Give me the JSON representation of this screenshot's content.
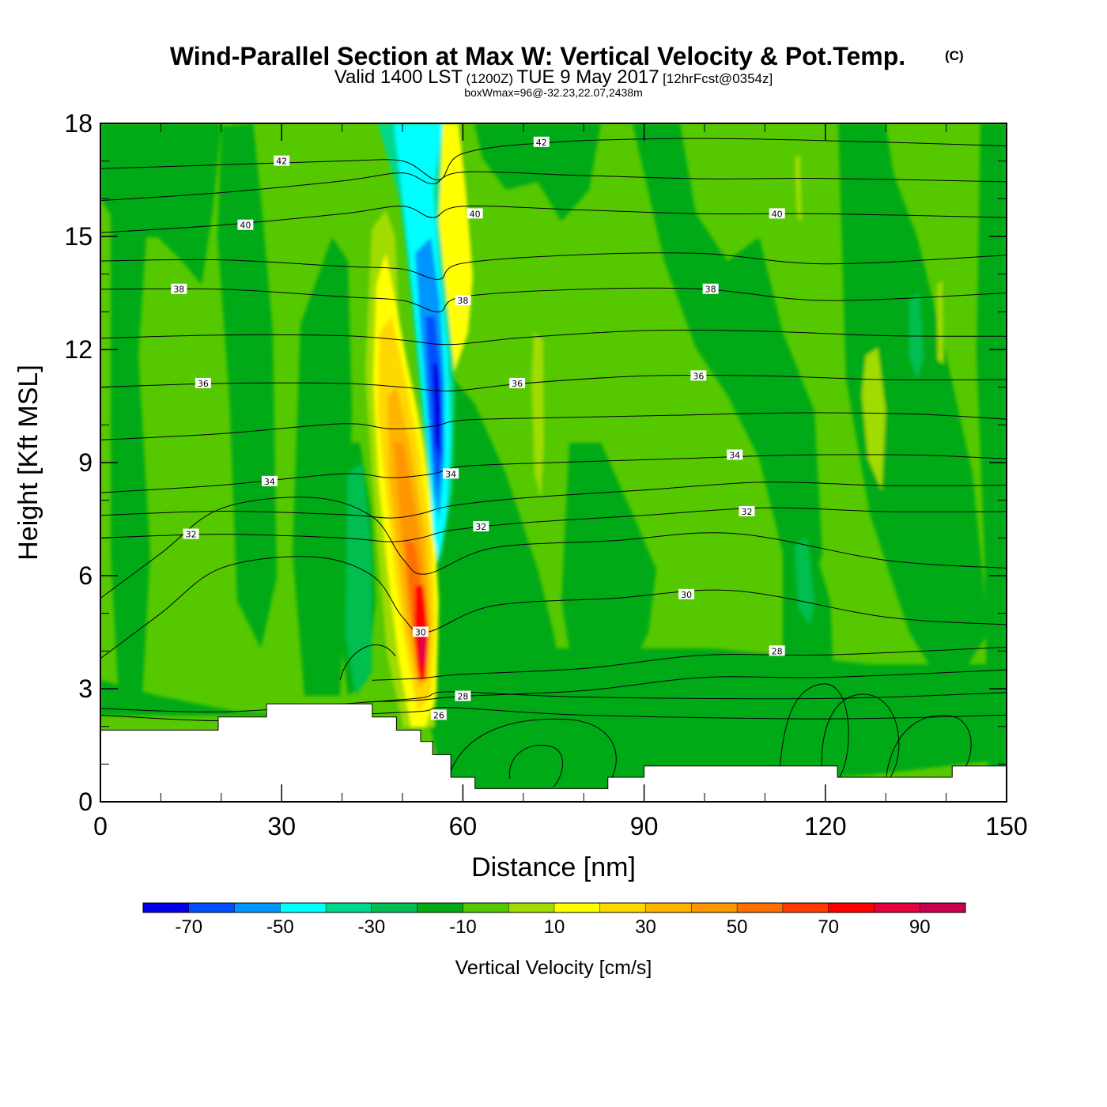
{
  "title": {
    "main": "Wind-Parallel Section at Max W: Vertical Velocity & Pot.Temp.",
    "copyright": "(C)",
    "valid_prefix": "Valid 1400 LST",
    "valid_zulu": "(1200Z)",
    "valid_date": "TUE 9 May 2017",
    "forecast": "[12hrFcst@0354z]",
    "box_info": "boxWmax=96@-32.23,22.07,2438m"
  },
  "chart_data": {
    "type": "contour-cross-section",
    "xlabel": "Distance [nm]",
    "ylabel": "Height [Kft MSL]",
    "xlim": [
      0,
      150
    ],
    "ylim": [
      0,
      18
    ],
    "x_ticks": [
      0,
      30,
      60,
      90,
      120,
      150
    ],
    "y_ticks": [
      0,
      3,
      6,
      9,
      12,
      15,
      18
    ],
    "x_tick_labels": [
      "0",
      "30",
      "60",
      "90",
      "120",
      "150"
    ],
    "y_tick_labels": [
      "0",
      "3",
      "6",
      "9",
      "12",
      "15",
      "18"
    ],
    "terrain_kft": [
      {
        "x": 0,
        "h": 1.9
      },
      {
        "x": 19.5,
        "h": 1.9
      },
      {
        "x": 19.5,
        "h": 2.25
      },
      {
        "x": 27.5,
        "h": 2.25
      },
      {
        "x": 27.5,
        "h": 2.6
      },
      {
        "x": 45,
        "h": 2.6
      },
      {
        "x": 45,
        "h": 2.25
      },
      {
        "x": 49,
        "h": 2.25
      },
      {
        "x": 49,
        "h": 1.9
      },
      {
        "x": 53,
        "h": 1.9
      },
      {
        "x": 53,
        "h": 1.6
      },
      {
        "x": 55,
        "h": 1.6
      },
      {
        "x": 55,
        "h": 1.25
      },
      {
        "x": 58,
        "h": 1.25
      },
      {
        "x": 58,
        "h": 0.65
      },
      {
        "x": 62,
        "h": 0.65
      },
      {
        "x": 62,
        "h": 0.35
      },
      {
        "x": 84,
        "h": 0.35
      },
      {
        "x": 84,
        "h": 0.65
      },
      {
        "x": 90,
        "h": 0.65
      },
      {
        "x": 90,
        "h": 0.95
      },
      {
        "x": 122,
        "h": 0.95
      },
      {
        "x": 122,
        "h": 0.65
      },
      {
        "x": 141,
        "h": 0.65
      },
      {
        "x": 141,
        "h": 0.95
      },
      {
        "x": 150,
        "h": 0.95
      }
    ],
    "theta_contours": [
      {
        "label": "26",
        "points": [
          [
            0,
            2.3
          ],
          [
            20,
            2.15
          ],
          [
            40,
            2.3
          ],
          [
            53,
            2.4
          ],
          [
            58,
            2.5
          ],
          [
            80,
            2.3
          ],
          [
            120,
            2.2
          ],
          [
            150,
            2.3
          ]
        ]
      },
      {
        "label": "28",
        "points": [
          [
            45,
            2.65
          ],
          [
            53,
            2.7
          ],
          [
            60,
            2.8
          ],
          [
            80,
            2.95
          ],
          [
            100,
            3.3
          ],
          [
            120,
            3.3
          ],
          [
            150,
            3.5
          ]
        ]
      },
      {
        "label": "30",
        "points": [
          [
            0,
            3.8
          ],
          [
            10,
            5.0
          ],
          [
            20,
            6.2
          ],
          [
            35,
            6.5
          ],
          [
            45,
            6.0
          ],
          [
            50,
            4.9
          ],
          [
            54,
            4.5
          ],
          [
            65,
            5.2
          ],
          [
            85,
            5.4
          ],
          [
            105,
            5.6
          ],
          [
            130,
            4.9
          ],
          [
            150,
            4.7
          ]
        ]
      },
      {
        "label": "32",
        "points": [
          [
            0,
            7.0
          ],
          [
            20,
            7.1
          ],
          [
            40,
            7.0
          ],
          [
            48,
            6.9
          ],
          [
            53,
            7.0
          ],
          [
            58,
            7.2
          ],
          [
            70,
            7.4
          ],
          [
            90,
            7.6
          ],
          [
            110,
            7.8
          ],
          [
            130,
            7.7
          ],
          [
            150,
            7.7
          ]
        ]
      },
      {
        "label": "34",
        "points": [
          [
            0,
            8.2
          ],
          [
            20,
            8.4
          ],
          [
            40,
            8.7
          ],
          [
            48,
            8.6
          ],
          [
            55,
            8.7
          ],
          [
            60,
            8.9
          ],
          [
            75,
            9.0
          ],
          [
            95,
            9.1
          ],
          [
            115,
            9.2
          ],
          [
            135,
            9.2
          ],
          [
            150,
            9.1
          ]
        ]
      },
      {
        "label": "36",
        "points": [
          [
            0,
            11.0
          ],
          [
            20,
            11.1
          ],
          [
            40,
            11.1
          ],
          [
            50,
            11.0
          ],
          [
            58,
            10.9
          ],
          [
            70,
            11.1
          ],
          [
            90,
            11.3
          ],
          [
            110,
            11.3
          ],
          [
            130,
            11.2
          ],
          [
            150,
            11.2
          ]
        ]
      },
      {
        "label": "38",
        "points": [
          [
            0,
            13.6
          ],
          [
            20,
            13.6
          ],
          [
            40,
            13.4
          ],
          [
            50,
            13.3
          ],
          [
            56,
            13.0
          ],
          [
            60,
            13.4
          ],
          [
            80,
            13.6
          ],
          [
            100,
            13.6
          ],
          [
            120,
            13.3
          ],
          [
            150,
            13.5
          ]
        ]
      },
      {
        "label": "40",
        "points": [
          [
            0,
            15.1
          ],
          [
            20,
            15.3
          ],
          [
            40,
            15.6
          ],
          [
            50,
            15.8
          ],
          [
            55,
            15.5
          ],
          [
            60,
            15.8
          ],
          [
            80,
            15.7
          ],
          [
            100,
            15.6
          ],
          [
            120,
            15.6
          ],
          [
            150,
            15.5
          ]
        ]
      },
      {
        "label": "42",
        "points": [
          [
            0,
            16.8
          ],
          [
            20,
            16.9
          ],
          [
            40,
            17.0
          ],
          [
            50,
            17.0
          ],
          [
            56,
            16.5
          ],
          [
            60,
            17.2
          ],
          [
            75,
            17.5
          ],
          [
            100,
            17.6
          ],
          [
            130,
            17.5
          ],
          [
            150,
            17.4
          ]
        ]
      }
    ],
    "theta_label_positions": [
      {
        "label": "42",
        "x": 30,
        "y": 17.0
      },
      {
        "label": "42",
        "x": 73,
        "y": 17.5
      },
      {
        "label": "40",
        "x": 24,
        "y": 15.3
      },
      {
        "label": "40",
        "x": 62,
        "y": 15.6
      },
      {
        "label": "40",
        "x": 112,
        "y": 15.6
      },
      {
        "label": "38",
        "x": 13,
        "y": 13.6
      },
      {
        "label": "38",
        "x": 60,
        "y": 13.3
      },
      {
        "label": "38",
        "x": 101,
        "y": 13.6
      },
      {
        "label": "36",
        "x": 17,
        "y": 11.1
      },
      {
        "label": "36",
        "x": 69,
        "y": 11.1
      },
      {
        "label": "36",
        "x": 99,
        "y": 11.3
      },
      {
        "label": "34",
        "x": 28,
        "y": 8.5
      },
      {
        "label": "34",
        "x": 58,
        "y": 8.7
      },
      {
        "label": "34",
        "x": 105,
        "y": 9.2
      },
      {
        "label": "32",
        "x": 15,
        "y": 7.1
      },
      {
        "label": "32",
        "x": 63,
        "y": 7.3
      },
      {
        "label": "32",
        "x": 107,
        "y": 7.7
      },
      {
        "label": "30",
        "x": 97,
        "y": 5.5
      },
      {
        "label": "30",
        "x": 53,
        "y": 4.5
      },
      {
        "label": "28",
        "x": 112,
        "y": 4.0
      },
      {
        "label": "28",
        "x": 60,
        "y": 2.8
      },
      {
        "label": "26",
        "x": 56,
        "y": 2.3
      }
    ],
    "w_features": [
      {
        "name": "downdraft-core",
        "w": -65,
        "x": [
          54,
          58
        ],
        "y": [
          7,
          12
        ]
      },
      {
        "name": "updraft-core",
        "w": 90,
        "x": [
          52,
          55
        ],
        "y": [
          3,
          5
        ]
      },
      {
        "name": "updraft-band",
        "w": 40,
        "x": [
          46,
          56
        ],
        "y": [
          2,
          14
        ]
      }
    ],
    "colorbar": {
      "title": "Vertical Velocity [cm/s]",
      "levels": [
        -80,
        -70,
        -60,
        -50,
        -40,
        -30,
        -20,
        -10,
        0,
        10,
        20,
        30,
        40,
        50,
        60,
        70,
        80,
        90,
        100
      ],
      "labels": [
        "-70",
        "-50",
        "-30",
        "-10",
        "10",
        "30",
        "50",
        "70",
        "90"
      ],
      "colors": [
        "#0000e6",
        "#0050ff",
        "#0096ff",
        "#00ffff",
        "#00d98c",
        "#00bf50",
        "#00aa14",
        "#55c800",
        "#a0dc00",
        "#ffff00",
        "#ffd800",
        "#ffb400",
        "#ff9600",
        "#ff6e00",
        "#ff3c00",
        "#ff0000",
        "#e6003c",
        "#c80050"
      ]
    }
  }
}
